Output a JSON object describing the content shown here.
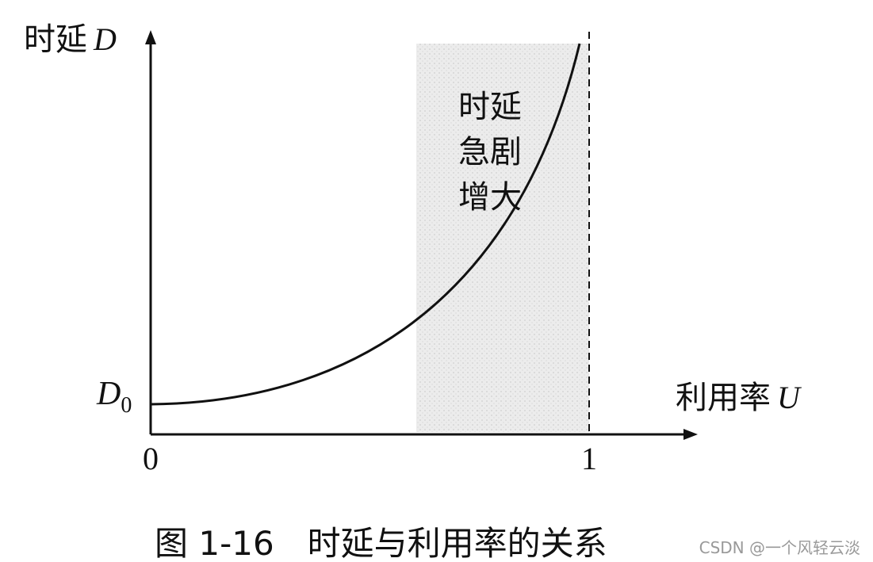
{
  "y_axis": {
    "label": "时延",
    "symbol": "D"
  },
  "x_axis": {
    "label": "利用率",
    "symbol": "U"
  },
  "origin_label": {
    "symbol": "D",
    "subscript": "0"
  },
  "x_ticks": [
    "0",
    "1"
  ],
  "region_label": [
    "时延",
    "急剧",
    "增大"
  ],
  "caption": "图 1-16　时延与利用率的关系",
  "watermark": "CSDN @一个风轻云淡"
}
